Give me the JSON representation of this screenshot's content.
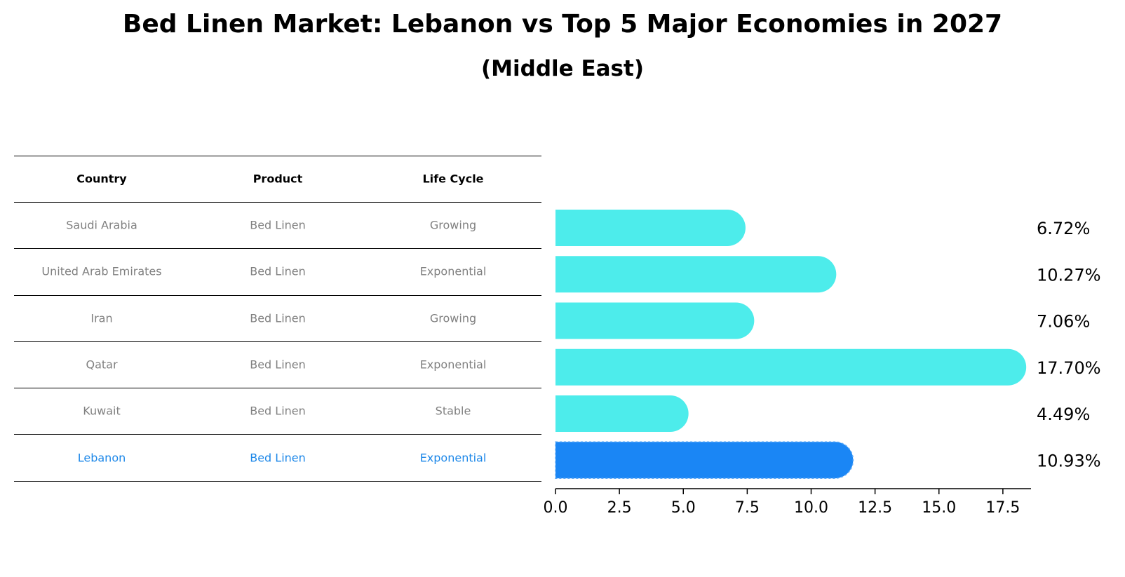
{
  "title": "Bed Linen Market: Lebanon vs Top 5 Major Economies in 2027",
  "subtitle": "(Middle East)",
  "table": {
    "headers": [
      "Country",
      "Product",
      "Life Cycle"
    ],
    "rows": [
      [
        "Saudi Arabia",
        "Bed Linen",
        "Growing"
      ],
      [
        "United Arab Emirates",
        "Bed Linen",
        "Exponential"
      ],
      [
        "Iran",
        "Bed Linen",
        "Growing"
      ],
      [
        "Qatar",
        "Bed Linen",
        "Exponential"
      ],
      [
        "Kuwait",
        "Bed Linen",
        "Stable"
      ],
      [
        "Lebanon",
        "Bed Linen",
        "Exponential"
      ]
    ]
  },
  "colors": {
    "bar": "#4deceb",
    "highlight": "#1a86f5",
    "muted_text": "#808080",
    "highlight_text": "#1a86e8"
  },
  "chart_data": {
    "type": "bar",
    "orientation": "horizontal",
    "categories": [
      "Saudi Arabia",
      "United Arab Emirates",
      "Iran",
      "Qatar",
      "Kuwait",
      "Lebanon"
    ],
    "values": [
      6.72,
      10.27,
      7.06,
      17.7,
      4.49,
      10.93
    ],
    "value_labels": [
      "6.72%",
      "10.27%",
      "7.06%",
      "17.70%",
      "4.49%",
      "10.93%"
    ],
    "highlight": "Lebanon",
    "xlim": [
      0,
      18.6
    ],
    "xticks": [
      0.0,
      2.5,
      5.0,
      7.5,
      10.0,
      12.5,
      15.0,
      17.5
    ],
    "xtick_labels": [
      "0.0",
      "2.5",
      "5.0",
      "7.5",
      "10.0",
      "12.5",
      "15.0",
      "17.5"
    ],
    "title": "Bed Linen Market: Lebanon vs Top 5 Major Economies in 2027",
    "xlabel": "",
    "ylabel": "",
    "grid": false
  }
}
